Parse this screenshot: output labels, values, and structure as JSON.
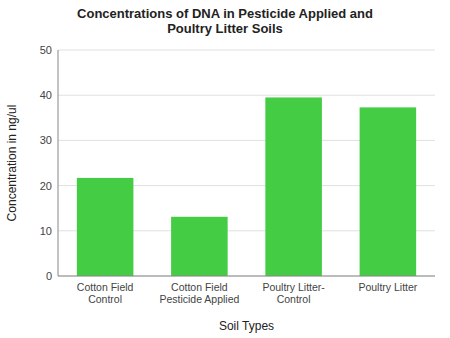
{
  "chart_data": {
    "type": "bar",
    "title": "Concentrations of DNA in Pesticide Applied and\nPoultry Litter Soils",
    "x_label": "Soil Types",
    "y_label": "Concentration in ng/ul",
    "categories": [
      "Cotton Field\nControl",
      "Cotton Field\nPesticide Applied",
      "Poultry Litter-\nControl",
      "Poultry Litter"
    ],
    "values": [
      21.7,
      13.1,
      39.5,
      37.3
    ],
    "color": "#44cc44",
    "ylim": [
      0,
      50
    ],
    "yticks": [
      0,
      10,
      20,
      30,
      40,
      50
    ],
    "grid": true
  }
}
